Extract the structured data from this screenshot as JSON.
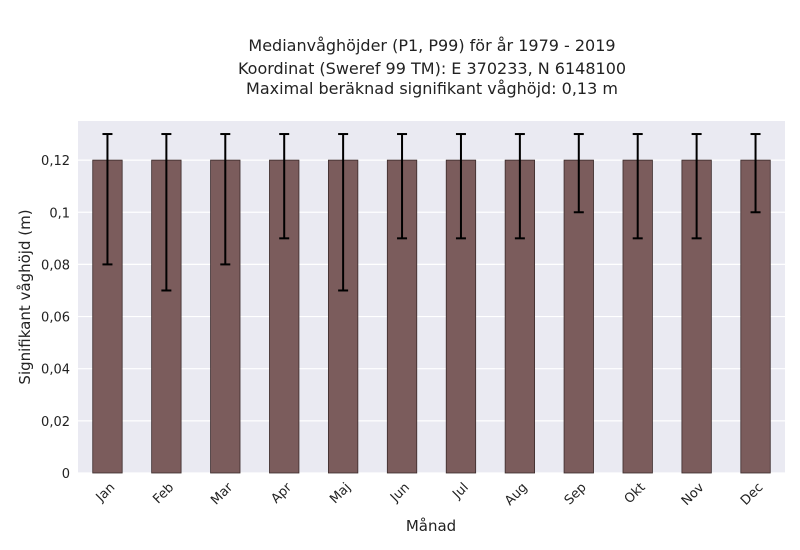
{
  "chart_data": {
    "type": "bar",
    "title_lines": [
      "Medianvåghöjder (P1, P99) för år 1979 - 2019",
      "Koordinat (Sweref 99 TM): E 370233, N 6148100",
      "Maximal beräknad signifikant våghöjd: 0,13 m"
    ],
    "xlabel": "Månad",
    "ylabel": "Signifikant våghöjd (m)",
    "categories": [
      "Jan",
      "Feb",
      "Mar",
      "Apr",
      "Maj",
      "Jun",
      "Jul",
      "Aug",
      "Sep",
      "Okt",
      "Nov",
      "Dec"
    ],
    "values": [
      0.12,
      0.12,
      0.12,
      0.12,
      0.12,
      0.12,
      0.12,
      0.12,
      0.12,
      0.12,
      0.12,
      0.12
    ],
    "p1": [
      0.08,
      0.07,
      0.08,
      0.09,
      0.07,
      0.09,
      0.09,
      0.09,
      0.1,
      0.09,
      0.09,
      0.1
    ],
    "p99": [
      0.13,
      0.13,
      0.13,
      0.13,
      0.13,
      0.13,
      0.13,
      0.13,
      0.13,
      0.13,
      0.13,
      0.13
    ],
    "ylim": [
      0,
      0.135
    ],
    "yticks": [
      0,
      0.02,
      0.04,
      0.06,
      0.08,
      0.1,
      0.12
    ],
    "ytick_labels": [
      "0",
      "0,02",
      "0,04",
      "0,06",
      "0,08",
      "0,1",
      "0,12"
    ],
    "grid": true,
    "colors": {
      "bar": "#7b5c5c",
      "bar_edge": "#3a2a2a",
      "errorbar": "#000000",
      "plot_bg": "#eaeaf2",
      "grid": "#ffffff"
    }
  }
}
